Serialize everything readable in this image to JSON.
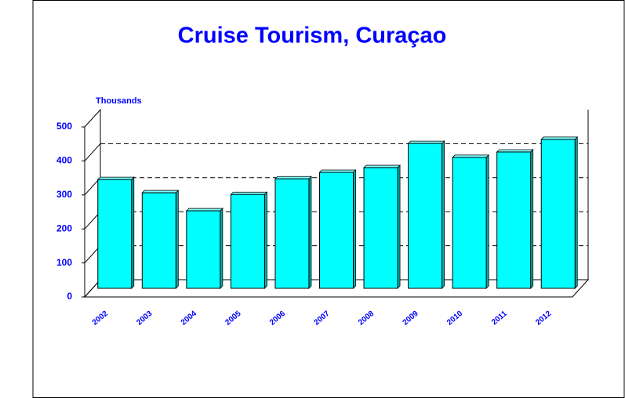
{
  "chart_data": {
    "type": "bar",
    "title": "Cruise Tourism, Curaçao",
    "y_label": "Thousands",
    "categories": [
      "2002",
      "2003",
      "2004",
      "2005",
      "2006",
      "2007",
      "2008",
      "2009",
      "2010",
      "2011",
      "2012"
    ],
    "values": [
      320,
      281,
      228,
      276,
      322,
      341,
      355,
      426,
      385,
      401,
      438
    ],
    "color": "#00ffff",
    "ylim": [
      0,
      500
    ],
    "yticks": [
      0,
      100,
      200,
      300,
      400,
      500
    ],
    "grid": true
  }
}
